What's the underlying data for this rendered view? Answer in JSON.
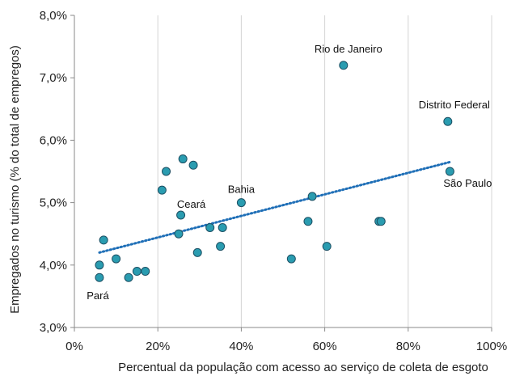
{
  "chart_data": {
    "type": "scatter",
    "xlabel": "Percentual da população com acesso ao serviço de coleta de esgoto",
    "ylabel": "Empregados no turismo (% do total de empregos)",
    "xlim": [
      0,
      100
    ],
    "ylim": [
      3.0,
      8.0
    ],
    "x_ticks": [
      0,
      20,
      40,
      60,
      80,
      100
    ],
    "x_tick_labels": [
      "0%",
      "20%",
      "40%",
      "60%",
      "80%",
      "100%"
    ],
    "y_ticks": [
      3.0,
      4.0,
      5.0,
      6.0,
      7.0,
      8.0
    ],
    "y_tick_labels": [
      "3,0%",
      "4,0%",
      "5,0%",
      "6,0%",
      "7,0%",
      "8,0%"
    ],
    "grid": "vertical",
    "marker_color": "#2a9cb0",
    "marker_edge": "#1b4f63",
    "trendline_color": "#1f6fb7",
    "trendline": {
      "x": [
        6,
        90
      ],
      "y": [
        4.2,
        5.65
      ]
    },
    "points": [
      {
        "x": 6,
        "y": 3.8,
        "label": "Pará"
      },
      {
        "x": 6,
        "y": 4.0
      },
      {
        "x": 7,
        "y": 4.4
      },
      {
        "x": 10,
        "y": 4.1
      },
      {
        "x": 13,
        "y": 3.8
      },
      {
        "x": 15,
        "y": 3.9
      },
      {
        "x": 17,
        "y": 3.9
      },
      {
        "x": 21,
        "y": 5.2
      },
      {
        "x": 22,
        "y": 5.5
      },
      {
        "x": 25,
        "y": 4.5
      },
      {
        "x": 25.5,
        "y": 4.8,
        "label": "Ceará"
      },
      {
        "x": 26,
        "y": 5.7
      },
      {
        "x": 28.5,
        "y": 5.6
      },
      {
        "x": 29.5,
        "y": 4.2
      },
      {
        "x": 32.5,
        "y": 4.6
      },
      {
        "x": 35,
        "y": 4.3
      },
      {
        "x": 35.5,
        "y": 4.6
      },
      {
        "x": 40,
        "y": 5.0,
        "label": "Bahia"
      },
      {
        "x": 52,
        "y": 4.1
      },
      {
        "x": 56,
        "y": 4.7
      },
      {
        "x": 57,
        "y": 5.1
      },
      {
        "x": 60.5,
        "y": 4.3
      },
      {
        "x": 64.5,
        "y": 7.2,
        "label": "Rio de Janeiro"
      },
      {
        "x": 73,
        "y": 4.7
      },
      {
        "x": 73.5,
        "y": 4.7
      },
      {
        "x": 89.5,
        "y": 6.3,
        "label": "Distrito Federal"
      },
      {
        "x": 90,
        "y": 5.5,
        "label": "São Paulo"
      }
    ]
  }
}
